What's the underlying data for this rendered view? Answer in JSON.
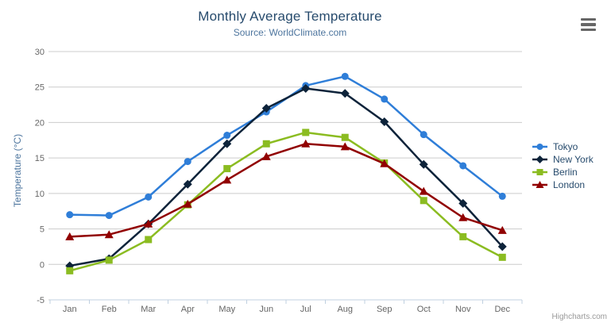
{
  "header": {
    "title": "Monthly Average Temperature",
    "subtitle": "Source: WorldClimate.com"
  },
  "export_menu": {
    "icon": "hamburger-icon"
  },
  "credits": {
    "label": "Highcharts.com"
  },
  "theme": {
    "title_color": "#274b6d",
    "subtitle_color": "#4d759e",
    "axis_label_color": "#666666",
    "axis_title_color": "#4d759e",
    "grid_color": "#cccccc",
    "axis_line_color": "#c0d0e0",
    "legend_text_color": "#274b6d",
    "credits_color": "#999999",
    "background": "#ffffff"
  },
  "chart_data": {
    "type": "line",
    "title": "Monthly Average Temperature",
    "subtitle": "Source: WorldClimate.com",
    "categories": [
      "Jan",
      "Feb",
      "Mar",
      "Apr",
      "May",
      "Jun",
      "Jul",
      "Aug",
      "Sep",
      "Oct",
      "Nov",
      "Dec"
    ],
    "series": [
      {
        "name": "Tokyo",
        "color": "#2f7ed8",
        "marker": "circle",
        "values": [
          7.0,
          6.9,
          9.5,
          14.5,
          18.2,
          21.5,
          25.2,
          26.5,
          23.3,
          18.3,
          13.9,
          9.6
        ]
      },
      {
        "name": "New York",
        "color": "#0d233a",
        "marker": "diamond",
        "values": [
          -0.2,
          0.8,
          5.7,
          11.3,
          17.0,
          22.0,
          24.8,
          24.1,
          20.1,
          14.1,
          8.6,
          2.5
        ]
      },
      {
        "name": "Berlin",
        "color": "#8bbc21",
        "marker": "square",
        "values": [
          -0.9,
          0.6,
          3.5,
          8.4,
          13.5,
          17.0,
          18.6,
          17.9,
          14.3,
          9.0,
          3.9,
          1.0
        ]
      },
      {
        "name": "London",
        "color": "#910000",
        "marker": "triangle",
        "values": [
          3.9,
          4.2,
          5.7,
          8.5,
          11.9,
          15.2,
          17.0,
          16.6,
          14.2,
          10.3,
          6.6,
          4.8
        ]
      }
    ],
    "xlabel": "",
    "ylabel": "Temperature (°C)",
    "yAxis": {
      "title": "Temperature (°C)",
      "min": -5,
      "max": 30,
      "tickInterval": 5
    },
    "ylim": [
      -5,
      30
    ],
    "grid": true,
    "legend_position": "right"
  }
}
